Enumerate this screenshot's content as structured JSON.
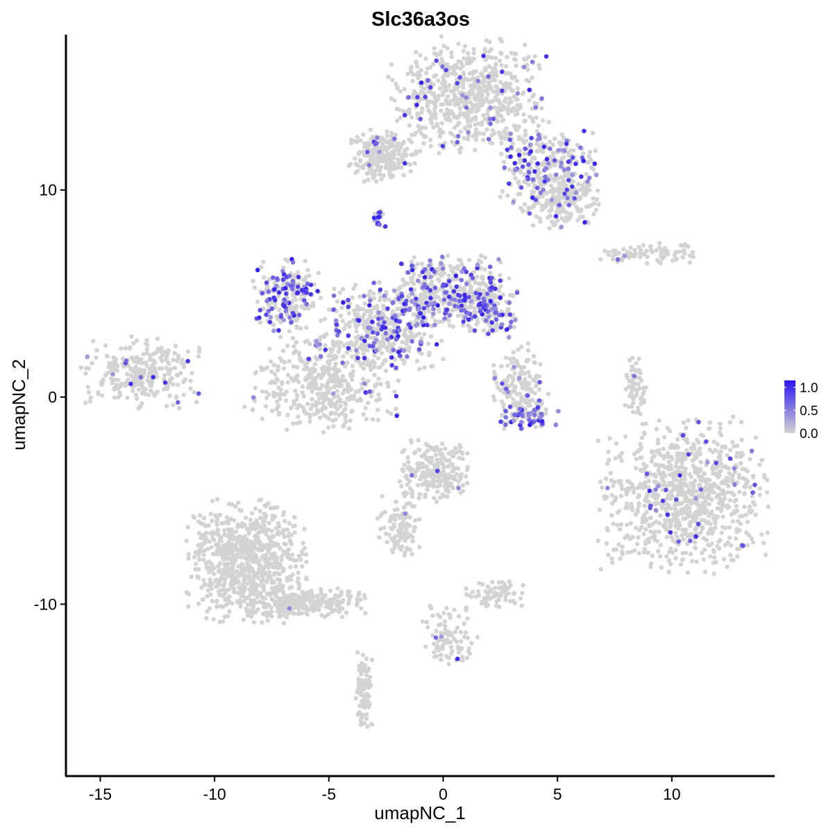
{
  "chart_data": {
    "type": "scatter",
    "title": "Slc36a3os",
    "xlabel": "umapNC_1",
    "ylabel": "umapNC_2",
    "xlim": [
      -16.5,
      14.5
    ],
    "ylim": [
      -18.3,
      17.5
    ],
    "x_ticks": [
      -15,
      -10,
      -5,
      0,
      5,
      10
    ],
    "x_tick_labels": [
      "-15",
      "-10",
      "-5",
      "0",
      "5",
      "10"
    ],
    "y_ticks": [
      -10,
      0,
      10
    ],
    "y_tick_labels": [
      "-10",
      "0",
      "10"
    ],
    "grid": false,
    "legend": {
      "placement": "right",
      "type": "colorbar",
      "min": 0.0,
      "max": 1.15,
      "ticks": [
        0.0,
        0.5,
        1.0
      ],
      "tick_labels": [
        "0.0",
        "0.5",
        "1.0"
      ],
      "low_color": "#d3d3d3",
      "high_color": "#2a16ee"
    },
    "colors": {
      "background_points": "#d3d3d3",
      "expressing_points": "#2a16ee"
    },
    "clusters": [
      {
        "name": "top-lobe",
        "cx": 1.1,
        "cy": 14.6,
        "sx": 1.6,
        "sy": 1.3,
        "n": 650
      },
      {
        "name": "top-left-arm",
        "cx": -2.7,
        "cy": 11.6,
        "sx": 0.7,
        "sy": 0.6,
        "n": 220
      },
      {
        "name": "top-right-tail",
        "cx": 4.6,
        "cy": 11.1,
        "sx": 1.0,
        "sy": 0.9,
        "n": 280
      },
      {
        "name": "top-right-lower",
        "cx": 5.2,
        "cy": 9.4,
        "sx": 0.9,
        "sy": 0.7,
        "n": 180
      },
      {
        "name": "mid-right-arm",
        "cx": 9.0,
        "cy": 6.9,
        "sx": 1.1,
        "sy": 0.25,
        "n": 90
      },
      {
        "name": "left-lobe",
        "cx": -13.2,
        "cy": 1.2,
        "sx": 1.2,
        "sy": 0.8,
        "n": 260
      },
      {
        "name": "center-lower-blob",
        "cx": -5.2,
        "cy": 0.6,
        "sx": 1.5,
        "sy": 1.1,
        "n": 420
      },
      {
        "name": "center-left-arm",
        "cx": -6.8,
        "cy": 4.9,
        "sx": 0.7,
        "sy": 0.8,
        "n": 230
      },
      {
        "name": "center-body",
        "cx": -2.8,
        "cy": 3.4,
        "sx": 1.3,
        "sy": 1.0,
        "n": 420
      },
      {
        "name": "center-right-arm",
        "cx": 0.4,
        "cy": 5.1,
        "sx": 1.2,
        "sy": 0.8,
        "n": 380
      },
      {
        "name": "center-right-tip",
        "cx": 2.0,
        "cy": 4.2,
        "sx": 0.6,
        "sy": 0.6,
        "n": 150
      },
      {
        "name": "small-cluster-center",
        "cx": 3.3,
        "cy": 0.4,
        "sx": 0.6,
        "sy": 1.0,
        "n": 160
      },
      {
        "name": "small-cluster-bottom",
        "cx": 3.7,
        "cy": -0.9,
        "sx": 0.6,
        "sy": 0.3,
        "n": 70
      },
      {
        "name": "right-big-blob",
        "cx": 10.5,
        "cy": -4.8,
        "sx": 1.7,
        "sy": 1.7,
        "n": 900
      },
      {
        "name": "right-upper-arm",
        "cx": 8.4,
        "cy": 0.5,
        "sx": 0.25,
        "sy": 0.8,
        "n": 60
      },
      {
        "name": "bottom-left-blob",
        "cx": -8.6,
        "cy": -8.0,
        "sx": 1.2,
        "sy": 1.4,
        "n": 800
      },
      {
        "name": "bottom-left-tail",
        "cx": -5.7,
        "cy": -9.9,
        "sx": 1.1,
        "sy": 0.35,
        "n": 200
      },
      {
        "name": "bottom-left-stalk",
        "cx": -3.5,
        "cy": -14.2,
        "sx": 0.18,
        "sy": 0.9,
        "n": 90
      },
      {
        "name": "center-bottom-blob",
        "cx": -0.4,
        "cy": -3.6,
        "sx": 0.7,
        "sy": 0.7,
        "n": 250
      },
      {
        "name": "center-bottom-arm",
        "cx": -2.0,
        "cy": -6.3,
        "sx": 0.5,
        "sy": 0.7,
        "n": 100
      },
      {
        "name": "center-bottom-small",
        "cx": 2.3,
        "cy": -9.5,
        "sx": 0.6,
        "sy": 0.3,
        "n": 70
      },
      {
        "name": "bottom-center-stalk",
        "cx": 0.2,
        "cy": -11.5,
        "sx": 0.6,
        "sy": 0.7,
        "n": 90
      },
      {
        "name": "isolated-top",
        "cx": -2.9,
        "cy": 8.6,
        "sx": 0.15,
        "sy": 0.2,
        "n": 15
      }
    ],
    "expressing_fraction_by_cluster": {
      "top-lobe": 0.08,
      "top-left-arm": 0.05,
      "top-right-tail": 0.28,
      "top-right-lower": 0.05,
      "mid-right-arm": 0.02,
      "left-lobe": 0.03,
      "center-lower-blob": 0.03,
      "center-left-arm": 0.35,
      "center-body": 0.25,
      "center-right-arm": 0.35,
      "center-right-tip": 0.35,
      "small-cluster-center": 0.08,
      "small-cluster-bottom": 0.6,
      "right-big-blob": 0.04,
      "right-upper-arm": 0.02,
      "bottom-left-blob": 0.0,
      "bottom-left-tail": 0.01,
      "bottom-left-stalk": 0.0,
      "center-bottom-blob": 0.01,
      "center-bottom-arm": 0.01,
      "center-bottom-small": 0.01,
      "bottom-center-stalk": 0.02,
      "isolated-top": 0.6
    }
  }
}
